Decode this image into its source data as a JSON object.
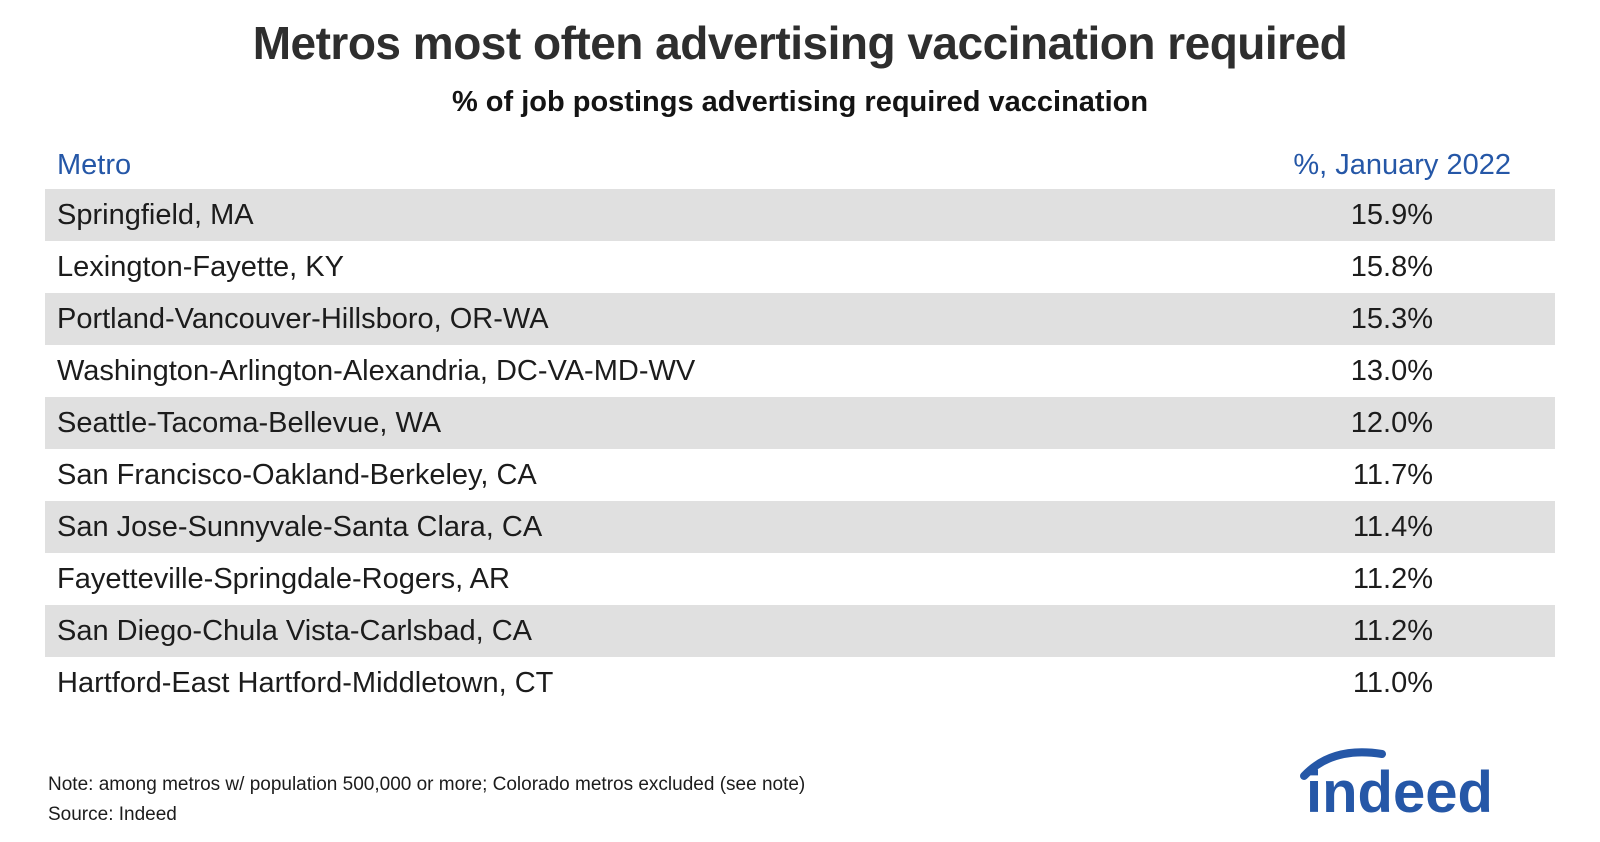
{
  "chart_data": {
    "type": "table",
    "title": "Metros most often advertising vaccination required",
    "subtitle": "% of job postings advertising required vaccination",
    "columns": [
      "Metro",
      "%, January 2022"
    ],
    "rows": [
      {
        "metro": "Springfield, MA",
        "value": "15.9%"
      },
      {
        "metro": "Lexington-Fayette, KY",
        "value": "15.8%"
      },
      {
        "metro": "Portland-Vancouver-Hillsboro, OR-WA",
        "value": "15.3%"
      },
      {
        "metro": "Washington-Arlington-Alexandria, DC-VA-MD-WV",
        "value": "13.0%"
      },
      {
        "metro": "Seattle-Tacoma-Bellevue, WA",
        "value": "12.0%"
      },
      {
        "metro": "San Francisco-Oakland-Berkeley, CA",
        "value": "11.7%"
      },
      {
        "metro": "San Jose-Sunnyvale-Santa Clara, CA",
        "value": "11.4%"
      },
      {
        "metro": "Fayetteville-Springdale-Rogers, AR",
        "value": "11.2%"
      },
      {
        "metro": "San Diego-Chula Vista-Carlsbad, CA",
        "value": "11.2%"
      },
      {
        "metro": "Hartford-East Hartford-Middletown, CT",
        "value": "11.0%"
      }
    ],
    "values": [
      15.9,
      15.8,
      15.3,
      13.0,
      12.0,
      11.7,
      11.4,
      11.2,
      11.2,
      11.0
    ],
    "legend_position": "none",
    "grid": false
  },
  "footer": {
    "note": "Note: among metros w/ population 500,000 or more; Colorado metros excluded (see note)",
    "source": "Source: Indeed",
    "logo_text": "indeed"
  },
  "colors": {
    "accent_blue": "#2557a7",
    "row_alt_gray": "#e0e0e0",
    "title_color": "#2e2e2e",
    "body_text": "#1c1c1c"
  }
}
